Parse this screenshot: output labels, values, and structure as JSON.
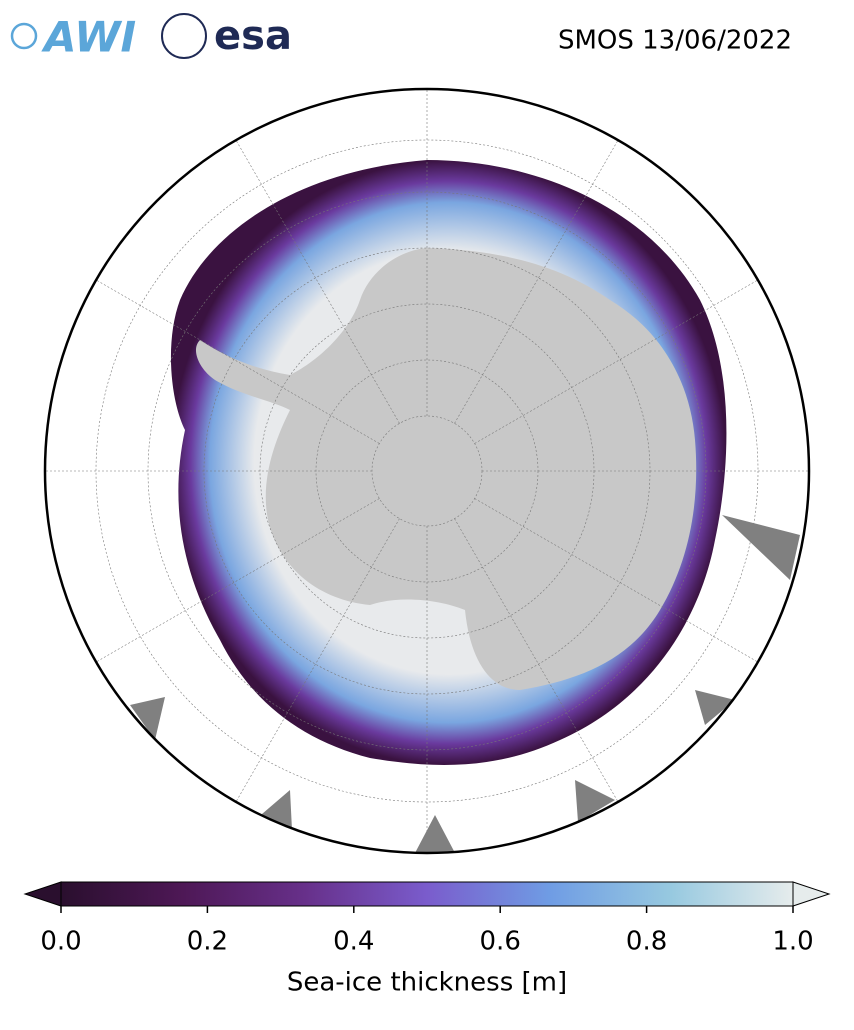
{
  "header": {
    "logo_awi": "AWI",
    "logo_esa": "esa",
    "title": "SMOS 13/06/2022"
  },
  "colorbar": {
    "label": "Sea-ice thickness [m]",
    "lim": [
      0,
      1
    ],
    "ticks": [
      {
        "value": 0,
        "label": "0.0"
      },
      {
        "value": 0.2,
        "label": "0.2"
      },
      {
        "value": 0.4,
        "label": "0.4"
      },
      {
        "value": 0.6,
        "label": "0.6"
      },
      {
        "value": 0.8,
        "label": "0.8"
      },
      {
        "value": 1,
        "label": "1.0"
      }
    ],
    "colors": [
      "#2a0f2e",
      "#4e1856",
      "#67308a",
      "#7a5ccc",
      "#6f9ce4",
      "#97c9e0",
      "#e6ecec"
    ]
  }
}
